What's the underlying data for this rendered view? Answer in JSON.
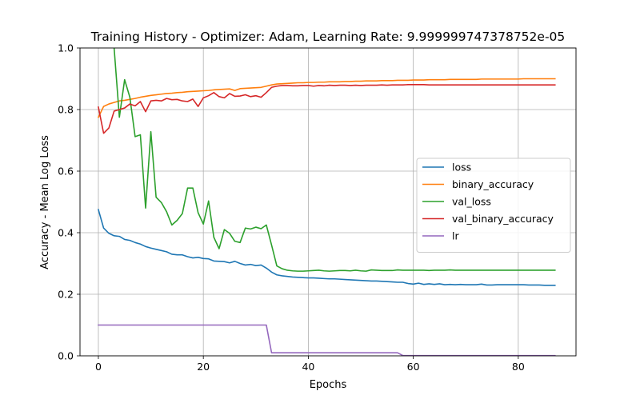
{
  "chart_data": {
    "type": "line",
    "title": "Training History - Optimizer: Adam, Learning Rate: 9.999999747378752e-05",
    "xlabel": "Epochs",
    "ylabel": "Accuracy - Mean Log Loss",
    "xlim": [
      -3.5,
      91
    ],
    "ylim": [
      0,
      1
    ],
    "xticks": [
      0,
      20,
      40,
      60,
      80
    ],
    "yticks": [
      0.0,
      0.2,
      0.4,
      0.6,
      0.8,
      1.0
    ],
    "grid": true,
    "legend_position": "center-right",
    "series": [
      {
        "name": "loss",
        "color": "#1f77b4",
        "values": [
          0.475,
          0.415,
          0.398,
          0.39,
          0.388,
          0.378,
          0.375,
          0.368,
          0.363,
          0.355,
          0.35,
          0.346,
          0.342,
          0.338,
          0.33,
          0.328,
          0.328,
          0.322,
          0.318,
          0.32,
          0.316,
          0.315,
          0.308,
          0.307,
          0.306,
          0.302,
          0.307,
          0.3,
          0.295,
          0.297,
          0.293,
          0.295,
          0.285,
          0.272,
          0.263,
          0.26,
          0.258,
          0.256,
          0.255,
          0.254,
          0.253,
          0.253,
          0.252,
          0.251,
          0.25,
          0.25,
          0.249,
          0.248,
          0.247,
          0.246,
          0.245,
          0.244,
          0.243,
          0.243,
          0.242,
          0.241,
          0.24,
          0.239,
          0.239,
          0.235,
          0.233,
          0.236,
          0.232,
          0.234,
          0.232,
          0.234,
          0.231,
          0.232,
          0.231,
          0.232,
          0.231,
          0.231,
          0.231,
          0.233,
          0.23,
          0.23,
          0.231,
          0.231,
          0.231,
          0.231,
          0.231,
          0.231,
          0.23,
          0.23,
          0.23,
          0.229,
          0.229,
          0.229
        ]
      },
      {
        "name": "binary_accuracy",
        "color": "#ff7f0e",
        "values": [
          0.775,
          0.81,
          0.818,
          0.823,
          0.828,
          0.83,
          0.833,
          0.836,
          0.84,
          0.843,
          0.846,
          0.848,
          0.85,
          0.852,
          0.853,
          0.855,
          0.856,
          0.858,
          0.859,
          0.86,
          0.861,
          0.862,
          0.864,
          0.865,
          0.866,
          0.867,
          0.862,
          0.868,
          0.869,
          0.87,
          0.871,
          0.872,
          0.876,
          0.88,
          0.883,
          0.884,
          0.885,
          0.886,
          0.887,
          0.887,
          0.888,
          0.888,
          0.889,
          0.889,
          0.89,
          0.89,
          0.89,
          0.891,
          0.891,
          0.892,
          0.892,
          0.893,
          0.893,
          0.893,
          0.894,
          0.894,
          0.894,
          0.895,
          0.895,
          0.895,
          0.896,
          0.896,
          0.896,
          0.897,
          0.897,
          0.897,
          0.897,
          0.898,
          0.898,
          0.898,
          0.898,
          0.898,
          0.898,
          0.899,
          0.899,
          0.899,
          0.899,
          0.899,
          0.899,
          0.899,
          0.899,
          0.9,
          0.9,
          0.9,
          0.9,
          0.9,
          0.9,
          0.9
        ]
      },
      {
        "name": "val_loss",
        "color": "#2ca02c",
        "values": [
          null,
          null,
          null,
          1.0,
          0.775,
          0.897,
          0.84,
          0.712,
          0.718,
          0.48,
          0.728,
          0.515,
          0.498,
          0.468,
          0.425,
          0.44,
          0.462,
          0.545,
          0.545,
          0.465,
          0.428,
          0.503,
          0.385,
          0.348,
          0.41,
          0.398,
          0.372,
          0.368,
          0.415,
          0.412,
          0.418,
          0.413,
          0.425,
          0.36,
          0.292,
          0.283,
          0.278,
          0.276,
          0.275,
          0.275,
          0.276,
          0.277,
          0.278,
          0.276,
          0.275,
          0.276,
          0.277,
          0.277,
          0.276,
          0.278,
          0.276,
          0.275,
          0.279,
          0.278,
          0.277,
          0.277,
          0.277,
          0.279,
          0.278,
          0.278,
          0.278,
          0.278,
          0.278,
          0.277,
          0.278,
          0.278,
          0.278,
          0.279,
          0.278,
          0.278,
          0.278,
          0.278,
          0.278,
          0.278,
          0.278,
          0.278,
          0.278,
          0.278,
          0.278,
          0.278,
          0.278,
          0.278,
          0.278,
          0.278,
          0.278,
          0.278,
          0.278,
          0.278
        ]
      },
      {
        "name": "val_binary_accuracy",
        "color": "#d62728",
        "values": [
          0.808,
          0.723,
          0.74,
          0.795,
          0.8,
          0.805,
          0.818,
          0.812,
          0.826,
          0.793,
          0.828,
          0.83,
          0.828,
          0.836,
          0.832,
          0.833,
          0.828,
          0.826,
          0.834,
          0.81,
          0.838,
          0.845,
          0.855,
          0.842,
          0.838,
          0.852,
          0.843,
          0.844,
          0.848,
          0.842,
          0.845,
          0.84,
          0.855,
          0.872,
          0.876,
          0.878,
          0.878,
          0.877,
          0.877,
          0.878,
          0.878,
          0.876,
          0.878,
          0.877,
          0.879,
          0.878,
          0.879,
          0.879,
          0.878,
          0.879,
          0.878,
          0.879,
          0.879,
          0.879,
          0.88,
          0.879,
          0.88,
          0.88,
          0.88,
          0.881,
          0.881,
          0.881,
          0.881,
          0.88,
          0.88,
          0.88,
          0.88,
          0.88,
          0.88,
          0.88,
          0.88,
          0.88,
          0.88,
          0.88,
          0.88,
          0.88,
          0.88,
          0.88,
          0.88,
          0.88,
          0.88,
          0.88,
          0.88,
          0.88,
          0.88,
          0.88,
          0.88,
          0.88
        ]
      },
      {
        "name": "lr",
        "color": "#9467bd",
        "values": [
          0.1,
          0.1,
          0.1,
          0.1,
          0.1,
          0.1,
          0.1,
          0.1,
          0.1,
          0.1,
          0.1,
          0.1,
          0.1,
          0.1,
          0.1,
          0.1,
          0.1,
          0.1,
          0.1,
          0.1,
          0.1,
          0.1,
          0.1,
          0.1,
          0.1,
          0.1,
          0.1,
          0.1,
          0.1,
          0.1,
          0.1,
          0.1,
          0.1,
          0.01,
          0.01,
          0.01,
          0.01,
          0.01,
          0.01,
          0.01,
          0.01,
          0.01,
          0.01,
          0.01,
          0.01,
          0.01,
          0.01,
          0.01,
          0.01,
          0.01,
          0.01,
          0.01,
          0.01,
          0.01,
          0.01,
          0.01,
          0.01,
          0.01,
          0.001,
          0.001,
          0.001,
          0.001,
          0.001,
          0.001,
          0.001,
          0.001,
          0.001,
          0.001,
          0.001,
          0.001,
          0.001,
          0.001,
          0.001,
          0.001,
          0.001,
          0.001,
          0.001,
          0.001,
          0.001,
          0.001,
          0.001,
          0.001,
          0.001,
          0.001,
          0.001,
          0.001,
          0.001,
          0.001
        ]
      }
    ]
  }
}
